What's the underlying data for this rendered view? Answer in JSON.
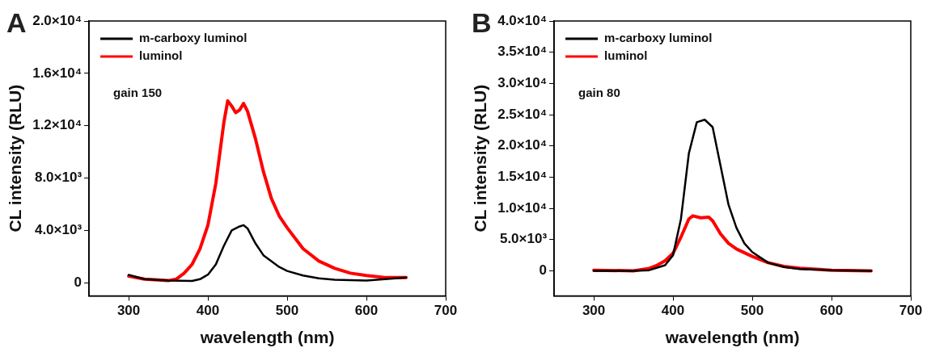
{
  "chart_data": [
    {
      "type": "line",
      "title": "A",
      "xlabel": "wavelength (nm)",
      "ylabel": "CL intensity (RLU)",
      "annotations": [
        "gain 150"
      ],
      "legend": "top left",
      "grid": false,
      "marker": "none",
      "line_style": "solid",
      "xlim": [
        250,
        700
      ],
      "xticks": [
        300,
        400,
        500,
        600,
        700
      ],
      "ylim": [
        -1000,
        20000
      ],
      "yticks": [
        0,
        {
          "value": 4000,
          "label": "4.0×10³"
        },
        {
          "value": 8000,
          "label": "8.0×10³"
        },
        {
          "value": 12000,
          "label": "1.2×10⁴"
        },
        {
          "value": 16000,
          "label": "1.6×10⁴"
        },
        {
          "value": 20000,
          "label": "2.0×10⁴"
        }
      ],
      "series": [
        {
          "name": "m-carboxy luminol",
          "color": "#000000",
          "x": [
            300,
            320,
            350,
            380,
            390,
            400,
            410,
            420,
            430,
            440,
            445,
            450,
            460,
            470,
            480,
            490,
            500,
            520,
            540,
            560,
            600,
            650
          ],
          "values": [
            600,
            270,
            160,
            140,
            270,
            620,
            1400,
            2800,
            4000,
            4300,
            4400,
            4150,
            3000,
            2100,
            1650,
            1200,
            900,
            550,
            340,
            230,
            160,
            390
          ]
        },
        {
          "name": "luminol",
          "color": "#ff0000",
          "x": [
            300,
            320,
            350,
            360,
            370,
            380,
            390,
            400,
            410,
            420,
            425,
            430,
            435,
            440,
            445,
            450,
            460,
            470,
            480,
            490,
            500,
            520,
            540,
            560,
            580,
            600,
            625,
            650
          ],
          "values": [
            500,
            270,
            160,
            270,
            730,
            1400,
            2600,
            4400,
            7600,
            12200,
            13900,
            13500,
            13000,
            13200,
            13700,
            13100,
            11000,
            8500,
            6450,
            5100,
            4200,
            2600,
            1650,
            1100,
            730,
            550,
            390,
            390
          ]
        }
      ]
    },
    {
      "type": "line",
      "title": "B",
      "xlabel": "wavelength (nm)",
      "ylabel": "CL intensity (RLU)",
      "annotations": [
        "gain 80"
      ],
      "legend": "top left",
      "grid": false,
      "marker": "none",
      "line_style": "solid",
      "xlim": [
        250,
        700
      ],
      "xticks": [
        300,
        400,
        500,
        600,
        700
      ],
      "ylim": [
        -4000,
        40000
      ],
      "yticks": [
        0,
        {
          "value": 5000,
          "label": "5.0×10³"
        },
        {
          "value": 10000,
          "label": "1.0×10⁴"
        },
        {
          "value": 15000,
          "label": "1.5×10⁴"
        },
        {
          "value": 20000,
          "label": "2.0×10⁴"
        },
        {
          "value": 25000,
          "label": "2.5×10⁴"
        },
        {
          "value": 30000,
          "label": "3.0×10⁴"
        },
        {
          "value": 35000,
          "label": "3.5×10⁴"
        },
        {
          "value": 40000,
          "label": "4.0×10⁴"
        }
      ],
      "series": [
        {
          "name": "m-carboxy luminol",
          "color": "#000000",
          "x": [
            300,
            350,
            370,
            390,
            400,
            410,
            420,
            430,
            440,
            450,
            460,
            470,
            480,
            490,
            500,
            520,
            540,
            560,
            600,
            650
          ],
          "values": [
            0,
            0,
            100,
            900,
            2500,
            8300,
            18800,
            23800,
            24200,
            23000,
            16800,
            10600,
            6900,
            4400,
            3000,
            1300,
            600,
            300,
            100,
            0
          ]
        },
        {
          "name": "luminol",
          "color": "#ff0000",
          "x": [
            300,
            350,
            370,
            380,
            390,
            400,
            410,
            420,
            425,
            435,
            445,
            450,
            460,
            470,
            480,
            500,
            520,
            540,
            560,
            600,
            650
          ],
          "values": [
            100,
            0,
            400,
            900,
            1600,
            2800,
            5400,
            8300,
            8800,
            8500,
            8600,
            8000,
            5900,
            4400,
            3500,
            2300,
            1300,
            700,
            400,
            100,
            0
          ]
        }
      ]
    }
  ]
}
